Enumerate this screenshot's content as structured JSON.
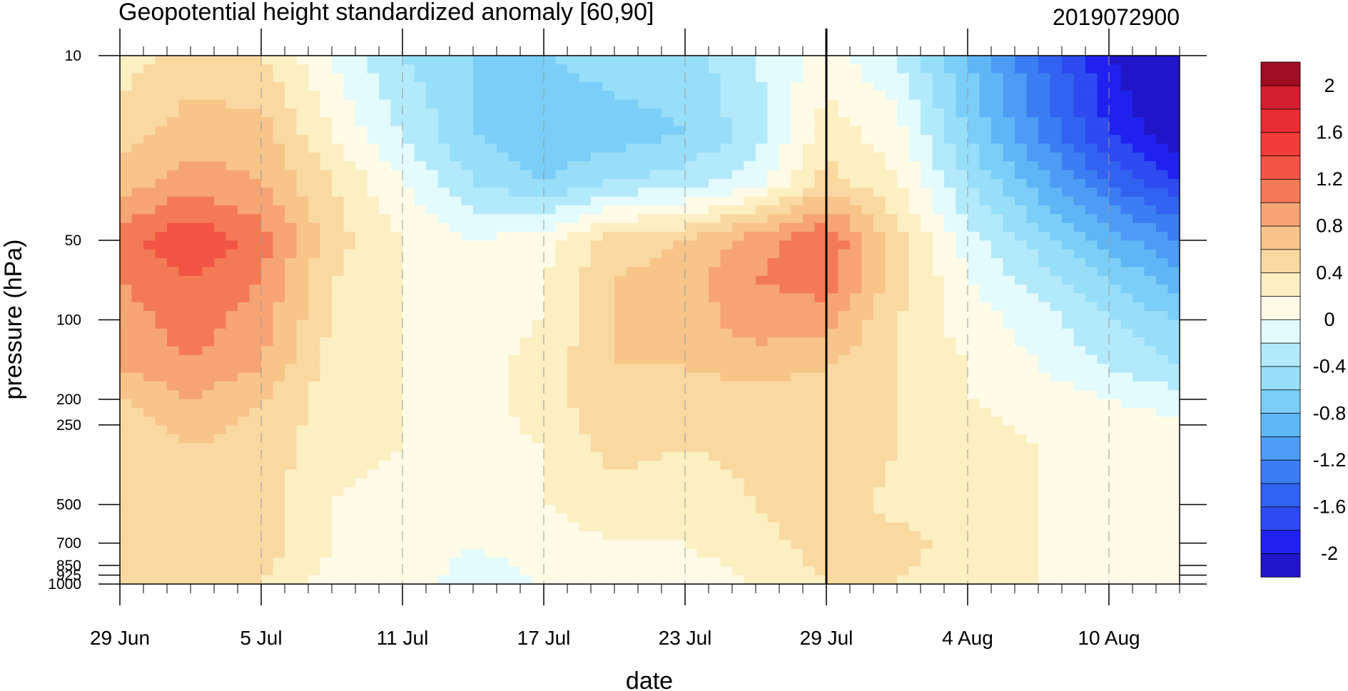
{
  "chart_data": {
    "type": "heatmap",
    "title": "Geopotential height standardized anomaly [60,90]",
    "date_label": "2019072900",
    "xlabel": "date",
    "ylabel": "pressure (hPa)",
    "y_scale": "log",
    "y_reversed": true,
    "ylim": [
      10,
      1000
    ],
    "x_tick_labels": [
      "29 Jun",
      "5 Jul",
      "11 Jul",
      "17 Jul",
      "23 Jul",
      "29 Jul",
      "4 Aug",
      "10 Aug"
    ],
    "x_range": [
      "2019-06-29",
      "2019-08-13"
    ],
    "y_tick_labels": [
      "10",
      "50",
      "100",
      "200",
      "250",
      "500",
      "700",
      "850",
      "925",
      "1000"
    ],
    "y_tick_values": [
      10,
      50,
      100,
      200,
      250,
      500,
      700,
      850,
      925,
      1000
    ],
    "current_date_line": "2019-07-29",
    "grid": "dashed vertical lines at labelled dates",
    "colorbar": {
      "levels": [
        -2.2,
        -2.0,
        -1.8,
        -1.6,
        -1.4,
        -1.2,
        -1.0,
        -0.8,
        -0.6,
        -0.4,
        -0.2,
        0.0,
        0.2,
        0.4,
        0.6,
        0.8,
        1.0,
        1.2,
        1.4,
        1.6,
        1.8,
        2.0,
        2.2
      ],
      "colors": [
        "#2115c8",
        "#1f22ee",
        "#2d4bf0",
        "#3262f1",
        "#3b7df3",
        "#4c9cf5",
        "#5fb6f6",
        "#7bcef8",
        "#97def9",
        "#b3eafb",
        "#e3fbfd",
        "#fffbe6",
        "#fcefc1",
        "#fad9a1",
        "#f8c48a",
        "#f7a474",
        "#f47a55",
        "#f25544",
        "#f03d3a",
        "#e82d35",
        "#d31f2e",
        "#a00c22"
      ],
      "tick_labels": [
        "-2",
        "-1.6",
        "-1.2",
        "-0.8",
        "-0.4",
        "0",
        "0.4",
        "0.8",
        "1.2",
        "1.6",
        "2"
      ],
      "tick_values": [
        -2.0,
        -1.6,
        -1.2,
        -0.8,
        -0.4,
        0.0,
        0.4,
        0.8,
        1.2,
        1.6,
        2.0
      ]
    },
    "grid_days": [
      0,
      3,
      6,
      9,
      12,
      15,
      18,
      21,
      24,
      27,
      30,
      33,
      36,
      39,
      42,
      45
    ],
    "grid_levels": [
      10,
      20,
      30,
      50,
      70,
      100,
      150,
      200,
      300,
      500,
      700,
      1000
    ],
    "values": [
      [
        0.3,
        0.5,
        0.4,
        0.0,
        -0.4,
        -0.6,
        -0.6,
        -0.5,
        -0.5,
        -0.2,
        0.1,
        -0.2,
        -0.8,
        -1.4,
        -2.0,
        -2.3
      ],
      [
        0.5,
        0.7,
        0.7,
        0.2,
        -0.2,
        -0.6,
        -0.8,
        -0.7,
        -0.6,
        -0.3,
        0.3,
        0.1,
        -0.6,
        -1.2,
        -1.8,
        -2.2
      ],
      [
        0.7,
        0.9,
        0.8,
        0.4,
        0.0,
        -0.4,
        -0.6,
        -0.4,
        -0.3,
        -0.1,
        0.5,
        0.2,
        -0.4,
        -0.9,
        -1.4,
        -1.8
      ],
      [
        1.1,
        1.4,
        1.1,
        0.5,
        0.2,
        0.0,
        0.1,
        0.5,
        0.6,
        0.9,
        1.2,
        0.5,
        -0.1,
        -0.5,
        -0.9,
        -1.2
      ],
      [
        1.0,
        1.2,
        1.0,
        0.4,
        0.2,
        0.1,
        0.2,
        0.6,
        0.7,
        1.0,
        1.1,
        0.5,
        0.0,
        -0.3,
        -0.6,
        -0.9
      ],
      [
        0.9,
        1.1,
        0.9,
        0.4,
        0.2,
        0.1,
        0.2,
        0.6,
        0.7,
        0.9,
        0.9,
        0.4,
        0.1,
        -0.1,
        -0.4,
        -0.6
      ],
      [
        0.8,
        1.0,
        0.8,
        0.3,
        0.2,
        0.1,
        0.3,
        0.6,
        0.6,
        0.7,
        0.6,
        0.4,
        0.2,
        0.0,
        -0.2,
        -0.4
      ],
      [
        0.6,
        0.8,
        0.6,
        0.3,
        0.2,
        0.1,
        0.3,
        0.6,
        0.5,
        0.5,
        0.5,
        0.4,
        0.2,
        0.1,
        0.0,
        -0.1
      ],
      [
        0.4,
        0.6,
        0.5,
        0.3,
        0.2,
        0.1,
        0.2,
        0.5,
        0.4,
        0.5,
        0.6,
        0.4,
        0.3,
        0.2,
        0.1,
        0.2
      ],
      [
        0.5,
        0.6,
        0.5,
        0.2,
        0.1,
        0.0,
        0.2,
        0.3,
        0.2,
        0.4,
        0.6,
        0.3,
        0.3,
        0.2,
        0.1,
        0.2
      ],
      [
        0.5,
        0.6,
        0.5,
        0.2,
        0.1,
        0.0,
        0.1,
        0.2,
        0.2,
        0.3,
        0.5,
        0.5,
        0.3,
        0.2,
        0.1,
        0.2
      ],
      [
        0.5,
        0.6,
        0.4,
        0.1,
        0.1,
        -0.1,
        0.0,
        0.1,
        0.1,
        0.2,
        0.4,
        0.4,
        0.2,
        0.2,
        0.1,
        0.0
      ]
    ]
  }
}
